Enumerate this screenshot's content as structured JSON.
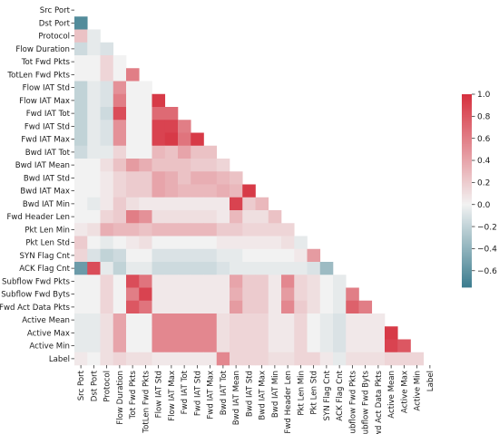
{
  "chart_data": {
    "type": "heatmap",
    "title": "",
    "xlabel": "",
    "ylabel": "",
    "variables": [
      "Src Port",
      "Dst Port",
      "Protocol",
      "Flow Duration",
      "Tot Fwd Pkts",
      "TotLen Fwd Pkts",
      "Flow IAT Std",
      "Flow IAT Max",
      "Fwd IAT Tot",
      "Fwd IAT Std",
      "Fwd IAT Max",
      "Bwd IAT Tot",
      "Bwd IAT Mean",
      "Bwd IAT Std",
      "Bwd IAT Max",
      "Bwd IAT Min",
      "Fwd Header Len",
      "Pkt Len Min",
      "Pkt Len Std",
      "SYN Flag Cnt",
      "ACK Flag Cnt",
      "Subflow Fwd Pkts",
      "Subflow Fwd Byts",
      "Fwd Act Data Pkts",
      "Active Mean",
      "Active Max",
      "Active Min",
      "Label"
    ],
    "mask": "upper triangle including diagonal",
    "colormap": {
      "low": "#3b7c8e",
      "mid": "#f2f2f2",
      "high": "#d6303e"
    },
    "vmin": -0.75,
    "vmax": 1.0,
    "colorbar_ticks": [
      1.0,
      0.8,
      0.6,
      0.4,
      0.2,
      0.0,
      -0.2,
      -0.4,
      -0.6
    ],
    "colorbar_tick_labels": [
      "1.0",
      "0.8",
      "0.6",
      "0.4",
      "0.2",
      "0.0",
      "−0.2",
      "−0.4",
      "−0.6"
    ],
    "lower_triangle_rows": [
      [],
      [
        -0.65
      ],
      [
        0.25,
        -0.05
      ],
      [
        -0.15,
        -0.05,
        -0.1
      ],
      [
        0.0,
        0.0,
        0.15,
        0.0
      ],
      [
        0.0,
        0.0,
        0.15,
        0.0,
        0.6
      ],
      [
        -0.2,
        -0.05,
        -0.1,
        0.5,
        0.0,
        0.0
      ],
      [
        -0.2,
        -0.05,
        -0.1,
        0.6,
        0.0,
        0.0,
        0.95
      ],
      [
        -0.2,
        -0.05,
        -0.15,
        0.85,
        0.0,
        0.0,
        0.7,
        0.7
      ],
      [
        -0.2,
        -0.05,
        -0.1,
        0.5,
        0.0,
        0.0,
        0.9,
        0.9,
        0.6
      ],
      [
        -0.2,
        -0.05,
        -0.1,
        0.5,
        0.0,
        0.0,
        0.9,
        0.95,
        0.65,
        0.95
      ],
      [
        -0.15,
        -0.05,
        -0.05,
        0.15,
        0.0,
        0.0,
        0.3,
        0.25,
        0.4,
        0.25,
        0.25
      ],
      [
        0.0,
        0.0,
        0.1,
        0.25,
        0.45,
        0.35,
        0.25,
        0.25,
        0.25,
        0.2,
        0.2,
        0.15
      ],
      [
        0.0,
        0.0,
        0.05,
        0.15,
        0.2,
        0.2,
        0.4,
        0.35,
        0.25,
        0.35,
        0.35,
        0.3,
        0.25
      ],
      [
        0.0,
        0.0,
        0.05,
        0.15,
        0.2,
        0.2,
        0.4,
        0.35,
        0.3,
        0.3,
        0.3,
        0.35,
        0.3,
        0.95
      ],
      [
        0.0,
        -0.05,
        0.05,
        0.2,
        0.1,
        0.05,
        0.05,
        0.05,
        0.05,
        0.05,
        0.05,
        0.05,
        0.9,
        0.2,
        0.3
      ],
      [
        0.0,
        0.0,
        0.15,
        0.2,
        0.6,
        0.5,
        0.1,
        0.1,
        0.1,
        0.1,
        0.1,
        0.05,
        0.3,
        0.1,
        0.1,
        0.25
      ],
      [
        0.05,
        0.1,
        0.35,
        0.3,
        0.3,
        0.25,
        0.3,
        0.3,
        0.3,
        0.3,
        0.3,
        0.2,
        0.2,
        0.15,
        0.15,
        0.15,
        0.15
      ],
      [
        0.2,
        0.0,
        -0.05,
        0.0,
        0.05,
        0.1,
        0.0,
        0.0,
        0.0,
        0.0,
        0.0,
        0.05,
        0.05,
        0.05,
        0.05,
        0.05,
        0.1,
        -0.05
      ],
      [
        0.15,
        -0.1,
        -0.2,
        -0.15,
        0.0,
        0.0,
        -0.1,
        -0.1,
        -0.1,
        -0.1,
        -0.1,
        -0.05,
        -0.05,
        0.0,
        0.0,
        0.0,
        0.0,
        0.05,
        0.45
      ],
      [
        -0.55,
        0.85,
        -0.05,
        -0.2,
        -0.05,
        -0.05,
        -0.15,
        -0.15,
        -0.15,
        -0.15,
        -0.15,
        -0.1,
        -0.05,
        -0.05,
        -0.05,
        -0.05,
        -0.05,
        -0.05,
        -0.1,
        -0.35
      ],
      [
        0.0,
        0.0,
        0.15,
        0.0,
        0.85,
        0.65,
        0.05,
        0.05,
        0.05,
        0.05,
        0.05,
        0.05,
        0.4,
        0.2,
        0.2,
        0.05,
        0.55,
        0.15,
        0.1,
        0.0,
        -0.05
      ],
      [
        0.0,
        0.0,
        0.15,
        0.0,
        0.6,
        0.9,
        0.05,
        0.05,
        0.05,
        0.05,
        0.05,
        0.05,
        0.35,
        0.2,
        0.2,
        0.05,
        0.45,
        0.15,
        0.1,
        0.0,
        -0.05,
        0.6
      ],
      [
        0.0,
        0.0,
        0.15,
        0.0,
        0.8,
        0.65,
        0.05,
        0.05,
        0.05,
        0.05,
        0.05,
        0.05,
        0.45,
        0.2,
        0.2,
        0.05,
        0.55,
        0.2,
        0.1,
        0.0,
        -0.05,
        0.75,
        0.6
      ],
      [
        -0.05,
        -0.05,
        0.1,
        0.4,
        0.0,
        0.0,
        0.55,
        0.55,
        0.55,
        0.55,
        0.55,
        0.1,
        0.15,
        0.15,
        0.15,
        0.05,
        0.05,
        0.15,
        0.0,
        -0.05,
        -0.1,
        0.05,
        0.05,
        0.05
      ],
      [
        -0.05,
        -0.05,
        0.1,
        0.4,
        0.0,
        0.0,
        0.55,
        0.55,
        0.55,
        0.55,
        0.55,
        0.1,
        0.15,
        0.15,
        0.15,
        0.05,
        0.05,
        0.15,
        0.0,
        -0.05,
        -0.1,
        0.05,
        0.05,
        0.05,
        0.95
      ],
      [
        -0.05,
        -0.05,
        0.1,
        0.4,
        0.0,
        0.0,
        0.55,
        0.55,
        0.55,
        0.55,
        0.55,
        0.1,
        0.15,
        0.15,
        0.15,
        0.05,
        0.05,
        0.15,
        0.0,
        -0.05,
        -0.1,
        0.05,
        0.05,
        0.05,
        0.9,
        0.8
      ],
      [
        0.05,
        0.0,
        0.1,
        0.15,
        0.1,
        0.1,
        0.05,
        0.05,
        0.05,
        0.05,
        0.05,
        0.55,
        0.15,
        0.15,
        0.15,
        0.1,
        0.1,
        0.15,
        0.15,
        0.05,
        -0.05,
        0.1,
        0.1,
        0.1,
        0.15,
        0.15,
        0.15
      ]
    ]
  }
}
